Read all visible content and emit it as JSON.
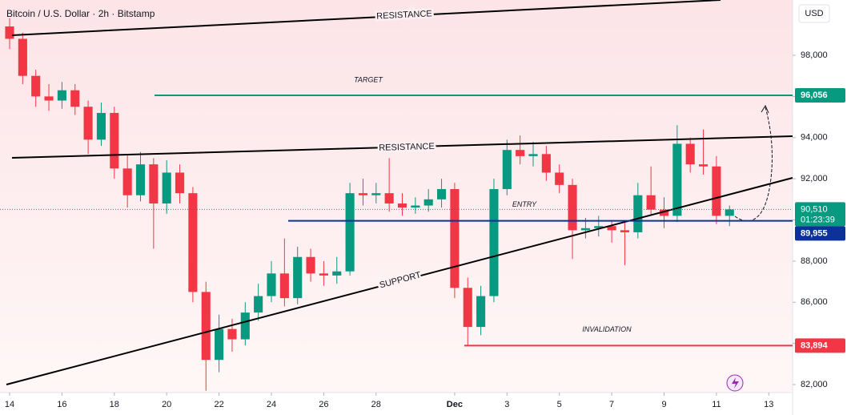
{
  "chart_data": {
    "type": "candlestick",
    "title": "Bitcoin / U.S. Dollar · 2h · Bitstamp",
    "currency": "USD",
    "up_color": "#089981",
    "down_color": "#f23645",
    "x": [
      14,
      14.5,
      15,
      15.5,
      16,
      16.5,
      17,
      17.5,
      18,
      18.5,
      19,
      19.5,
      20,
      20.5,
      21,
      21.5,
      22,
      22.5,
      23,
      23.5,
      24,
      24.5,
      25,
      25.5,
      26,
      26.5,
      27,
      27.5,
      28,
      28.5,
      29,
      29.5,
      30,
      30.5,
      31,
      31.5,
      32,
      32.5,
      33,
      33.5,
      34,
      34.5,
      35,
      35.5,
      36,
      36.5,
      37,
      37.5,
      38,
      38.5,
      39,
      39.5,
      40,
      40.5,
      41,
      41.5
    ],
    "open": [
      99400,
      98800,
      97000,
      96000,
      95800,
      96300,
      95500,
      93900,
      95200,
      92500,
      91200,
      92700,
      90800,
      92300,
      91300,
      86500,
      83200,
      84700,
      84200,
      85500,
      86300,
      87400,
      86200,
      88200,
      87400,
      87300,
      87500,
      91300,
      91200,
      91300,
      90800,
      90600,
      90700,
      91000,
      91500,
      86700,
      84800,
      86300,
      91500,
      93400,
      93100,
      93200,
      92300,
      91700,
      89500,
      89600,
      89700,
      89500,
      89400,
      91200,
      90500,
      90200,
      93700,
      92700,
      92600,
      90200
    ],
    "high": [
      99800,
      99100,
      97300,
      96600,
      96700,
      96600,
      95800,
      95700,
      95500,
      93200,
      93300,
      93000,
      92900,
      92700,
      91600,
      87000,
      85400,
      85200,
      86000,
      86900,
      88000,
      89100,
      88700,
      88600,
      88000,
      88200,
      91800,
      92000,
      91800,
      93000,
      91300,
      91100,
      91500,
      92000,
      91800,
      87200,
      86800,
      92000,
      93900,
      94100,
      93800,
      93600,
      92700,
      92000,
      90100,
      90200,
      90000,
      89900,
      91800,
      92600,
      91100,
      94600,
      94000,
      94400,
      93100,
      90700
    ],
    "low": [
      98300,
      96600,
      95500,
      95300,
      95400,
      95100,
      93200,
      93600,
      92000,
      90600,
      90900,
      88600,
      90300,
      90800,
      86000,
      81700,
      82600,
      83600,
      83900,
      85100,
      86000,
      85800,
      85900,
      87000,
      86800,
      86900,
      87300,
      90700,
      90800,
      90400,
      90200,
      90300,
      90400,
      90600,
      86200,
      83900,
      84400,
      86000,
      91200,
      92700,
      92600,
      91900,
      91300,
      88100,
      89100,
      89200,
      88900,
      87800,
      89100,
      90200,
      89600,
      89900,
      92300,
      92200,
      89800,
      89700
    ],
    "close": [
      98800,
      97000,
      96000,
      95800,
      96300,
      95500,
      93900,
      95200,
      92500,
      91200,
      92700,
      90800,
      92300,
      91300,
      86500,
      83200,
      84700,
      84200,
      85500,
      86300,
      87400,
      86200,
      88200,
      87400,
      87300,
      87500,
      91300,
      91200,
      91300,
      90800,
      90600,
      90700,
      91000,
      91500,
      86700,
      84800,
      86300,
      91500,
      93400,
      93100,
      93200,
      92300,
      91700,
      89500,
      89600,
      89700,
      89500,
      89400,
      91200,
      90500,
      90200,
      93700,
      92700,
      92600,
      90200,
      90510
    ],
    "xlim": [
      13.633,
      43.908
    ],
    "xticks": [
      14,
      16,
      18,
      20,
      22,
      24,
      26,
      28,
      {
        "value": 31,
        "label": "Dec"
      },
      {
        "value": 33,
        "label": "3"
      },
      {
        "value": 35,
        "label": "5"
      },
      {
        "value": 37,
        "label": "7"
      },
      {
        "value": 39,
        "label": "9"
      },
      {
        "value": 41,
        "label": "11"
      },
      {
        "value": 43,
        "label": "13"
      }
    ],
    "ylim": [
      81612,
      100686
    ],
    "yticks": [
      {
        "value": 82000,
        "label": "82,000"
      },
      {
        "value": 84000,
        "label": "84,000"
      },
      {
        "value": 86000,
        "label": "86,000"
      },
      {
        "value": 88000,
        "label": "88,000"
      },
      {
        "value": 90000,
        "label": "90,000"
      },
      {
        "value": 92000,
        "label": "92,000"
      },
      {
        "value": 94000,
        "label": "94,000"
      },
      {
        "value": 96000,
        "label": "96,000"
      },
      {
        "value": 98000,
        "label": "98,000"
      }
    ],
    "levels": [
      {
        "name": "TARGET",
        "value": 96056,
        "label": "96,056",
        "color": "#089981"
      },
      {
        "name": "ENTRY",
        "value": 89955,
        "label": "89,955",
        "color": "#0c3299"
      },
      {
        "name": "INVALIDATION",
        "value": 83894,
        "label": "83,894",
        "color": "#f23645"
      }
    ],
    "last_price": {
      "value": 90510,
      "label": "90,510",
      "countdown": "01:23:39",
      "color": "#089981"
    },
    "annotations": [
      "RESISTANCE",
      "RESISTANCE",
      "SUPPORT"
    ]
  }
}
